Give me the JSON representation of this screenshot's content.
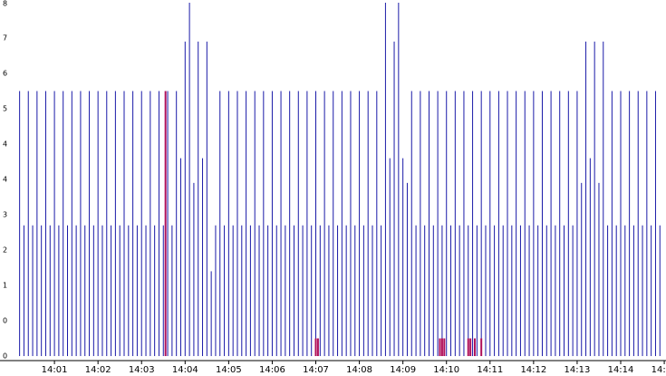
{
  "chart_data": {
    "type": "spike",
    "xlim": [
      -0.25,
      15.04
    ],
    "xticks": [
      {
        "value": 1,
        "label": "14:01"
      },
      {
        "value": 2,
        "label": "14:02"
      },
      {
        "value": 3,
        "label": "14:03"
      },
      {
        "value": 4,
        "label": "14:04"
      },
      {
        "value": 5,
        "label": "14:05"
      },
      {
        "value": 6,
        "label": "14:06"
      },
      {
        "value": 7,
        "label": "14:07"
      },
      {
        "value": 8,
        "label": "14:08"
      },
      {
        "value": 9,
        "label": "14:09"
      },
      {
        "value": 10,
        "label": "14:10"
      },
      {
        "value": 11,
        "label": "14:11"
      },
      {
        "value": 12,
        "label": "14:12"
      },
      {
        "value": 13,
        "label": "14:13"
      },
      {
        "value": 14,
        "label": "14:14"
      },
      {
        "value": 15,
        "label": "14:15"
      }
    ],
    "ylim": [
      0,
      10
    ],
    "yticks": [
      0,
      {
        "value": 1,
        "label": "0"
      },
      {
        "value": 2,
        "label": "1"
      },
      {
        "value": 3,
        "label": "2"
      },
      {
        "value": 4,
        "label": "3"
      },
      {
        "value": 5,
        "label": "4"
      },
      {
        "value": 6,
        "label": "4"
      },
      {
        "value": 7,
        "label": "5"
      },
      {
        "value": 8,
        "label": "6"
      },
      {
        "value": 9,
        "label": "7"
      },
      {
        "value": 10,
        "label": "8"
      }
    ],
    "series": [
      {
        "color": "#1a1aa8",
        "x": [
          0.2,
          0.3,
          0.4,
          0.5,
          0.6,
          0.7,
          0.8,
          0.9,
          1,
          1.1,
          1.2,
          1.3,
          1.4,
          1.5,
          1.6,
          1.7,
          1.8,
          1.9,
          2,
          2.1,
          2.2,
          2.3,
          2.4,
          2.5,
          2.6,
          2.7,
          2.8,
          2.9,
          3,
          3.1,
          3.2,
          3.3,
          3.4,
          3.5,
          3.6,
          3.7,
          3.8,
          3.9,
          4,
          4.1,
          4.2,
          4.3,
          4.4,
          4.5,
          4.6,
          4.7,
          4.8,
          4.9,
          5,
          5.1,
          5.2,
          5.3,
          5.4,
          5.5,
          5.6,
          5.7,
          5.8,
          5.9,
          6,
          6.1,
          6.2,
          6.3,
          6.4,
          6.5,
          6.6,
          6.7,
          6.8,
          6.9,
          7,
          7.1,
          7.2,
          7.3,
          7.4,
          7.5,
          7.6,
          7.7,
          7.8,
          7.9,
          8,
          8.1,
          8.2,
          8.3,
          8.4,
          8.5,
          8.6,
          8.7,
          8.8,
          8.9,
          9,
          9.1,
          9.2,
          9.3,
          9.4,
          9.5,
          9.6,
          9.7,
          9.8,
          9.9,
          10,
          10.1,
          10.2,
          10.3,
          10.4,
          10.5,
          10.6,
          10.7,
          10.8,
          10.9,
          11,
          11.1,
          11.2,
          11.3,
          11.4,
          11.5,
          11.6,
          11.7,
          11.8,
          11.9,
          12,
          12.1,
          12.2,
          12.3,
          12.4,
          12.5,
          12.6,
          12.7,
          12.8,
          12.9,
          13,
          13.1,
          13.2,
          13.3,
          13.4,
          13.5,
          13.6,
          13.7,
          13.8,
          13.9,
          14,
          14.1,
          14.2,
          14.3,
          14.4,
          14.5,
          14.6,
          14.7,
          14.8,
          14.9
        ],
        "values": [
          7.5,
          3.7,
          7.5,
          3.7,
          7.5,
          3.7,
          7.5,
          3.7,
          7.5,
          3.7,
          7.5,
          3.7,
          7.5,
          3.7,
          7.5,
          3.7,
          7.5,
          3.7,
          7.5,
          3.7,
          7.5,
          3.7,
          7.5,
          3.7,
          7.5,
          3.7,
          7.5,
          3.7,
          7.5,
          3.7,
          7.5,
          3.7,
          7.5,
          3.7,
          7.5,
          3.7,
          7.5,
          5.6,
          8.9,
          10,
          4.9,
          8.9,
          5.6,
          8.9,
          2.4,
          3.7,
          7.5,
          3.7,
          7.5,
          3.7,
          7.5,
          3.7,
          7.5,
          3.7,
          7.5,
          3.7,
          7.5,
          3.7,
          7.5,
          3.7,
          7.5,
          3.7,
          7.5,
          3.7,
          7.5,
          3.7,
          7.5,
          3.7,
          7.5,
          3.7,
          7.5,
          3.7,
          7.5,
          3.7,
          7.5,
          3.7,
          7.5,
          3.7,
          7.5,
          3.7,
          7.5,
          3.7,
          7.5,
          3.7,
          10,
          5.6,
          8.9,
          10,
          5.6,
          4.9,
          7.5,
          3.7,
          7.5,
          3.7,
          7.5,
          3.7,
          7.5,
          3.7,
          7.5,
          3.7,
          7.5,
          3.7,
          7.5,
          3.7,
          7.5,
          3.7,
          7.5,
          3.7,
          7.5,
          3.7,
          7.5,
          3.7,
          7.5,
          3.7,
          7.5,
          3.7,
          7.5,
          3.7,
          7.5,
          3.7,
          7.5,
          3.7,
          7.5,
          3.7,
          7.5,
          3.7,
          7.5,
          3.7,
          7.5,
          4.9,
          8.9,
          5.6,
          8.9,
          4.9,
          8.9,
          3.7,
          7.5,
          3.7,
          7.5,
          3.7,
          7.5,
          3.7,
          7.5,
          3.7,
          7.5,
          3.7,
          7.5,
          3.7
        ]
      },
      {
        "color": "#b0105a",
        "x": [
          3.55,
          7,
          7.05,
          9.85,
          9.9,
          9.95,
          10.5,
          10.55,
          10.65,
          10.8
        ],
        "values": [
          7.5,
          0.5,
          0.5,
          0.5,
          0.5,
          0.5,
          0.5,
          0.5,
          0.5,
          0.5
        ]
      }
    ]
  }
}
